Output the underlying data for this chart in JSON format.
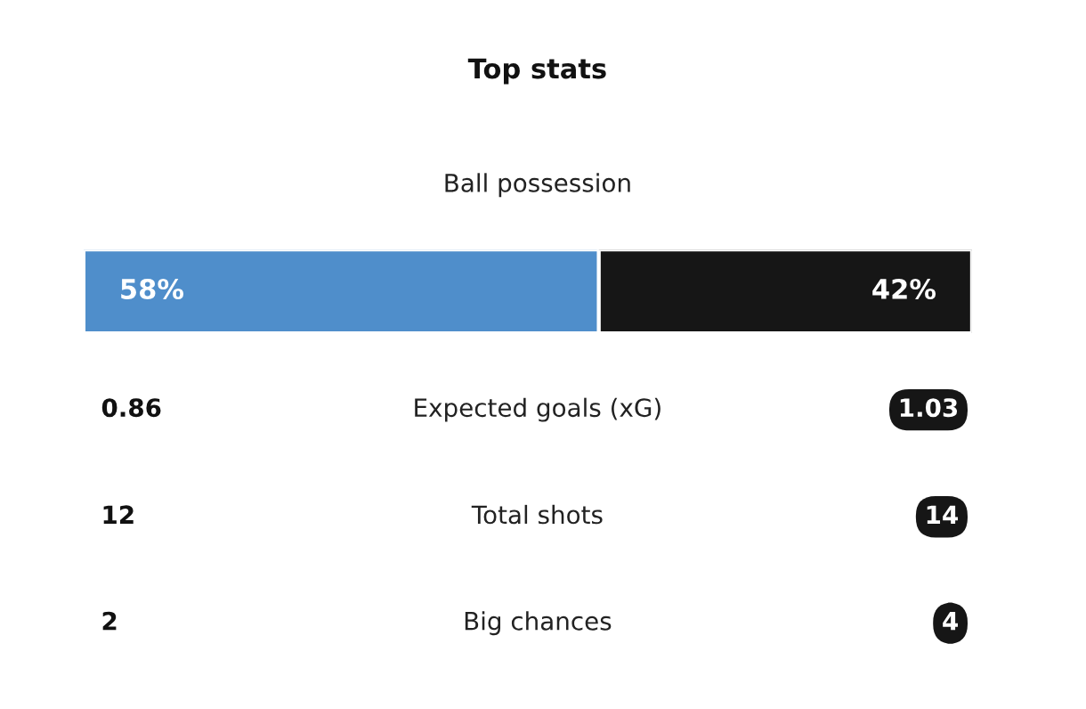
{
  "chart_data": {
    "type": "bar",
    "title": "Top stats",
    "subtitle": "Ball possession",
    "categories": [
      null
    ],
    "orientation": "horizontal",
    "stacked": true,
    "series": [
      {
        "color": "#4f8ecb",
        "values": [
          58
        ],
        "value_labels": [
          "58%"
        ]
      },
      {
        "color": "#161616",
        "values": [
          42
        ],
        "value_labels": [
          "42%"
        ]
      }
    ],
    "xlim": [
      0,
      100
    ],
    "tick_labels": false,
    "annotations": [
      "0.86",
      "Expected goals (xG)",
      "1.03",
      "12",
      "Total shots",
      "14",
      "2",
      "Big chances",
      "4"
    ]
  }
}
